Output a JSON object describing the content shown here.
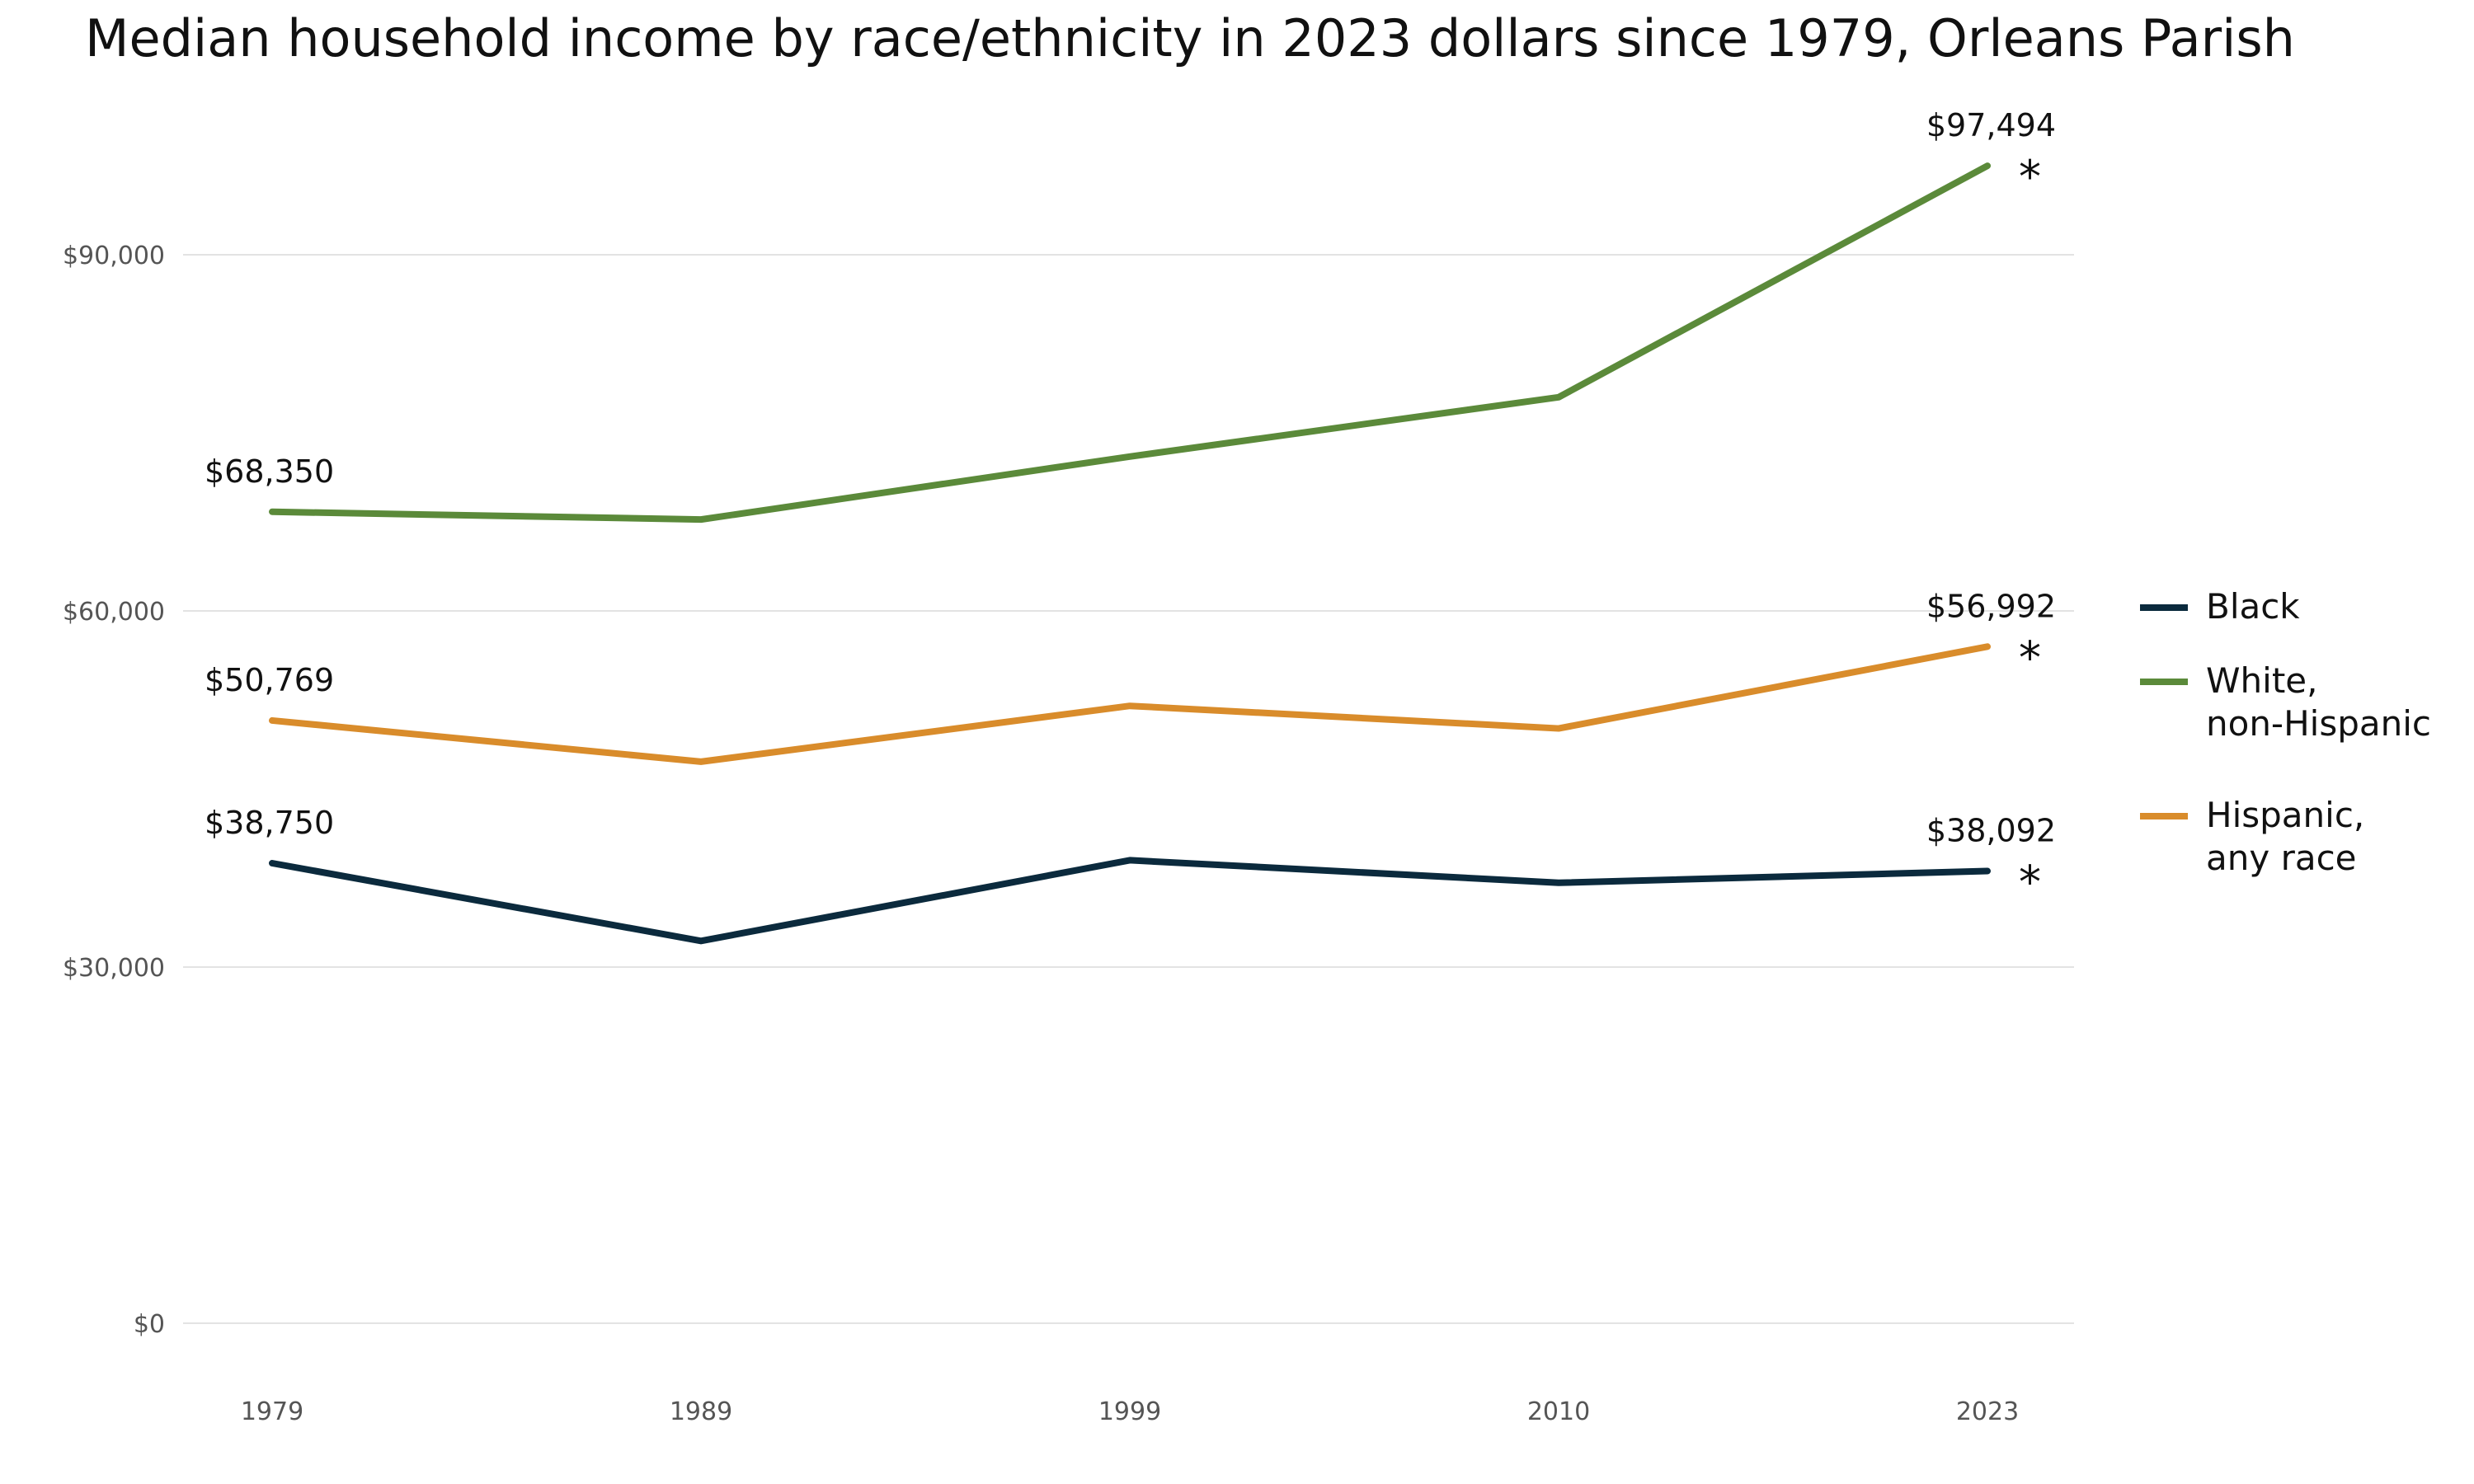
{
  "chart_data": {
    "type": "line",
    "title": "Median household income by race/ethnicity in 2023 dollars since 1979, Orleans Parish",
    "xlabel": "",
    "ylabel": "",
    "categories": [
      "1979",
      "1989",
      "1999",
      "2010",
      "2023"
    ],
    "ylim": [
      0,
      100000
    ],
    "y_ticks": [
      0,
      30000,
      60000,
      90000
    ],
    "y_tick_labels": [
      "$0",
      "$30,000",
      "$60,000",
      "$90,000"
    ],
    "grid": true,
    "legend_position": "right",
    "series": [
      {
        "name": "Black",
        "legend_lines": [
          "Black"
        ],
        "color": "#0b2a3d",
        "values": [
          38750,
          32200,
          39000,
          37100,
          38092
        ],
        "start_label": "$38,750",
        "end_label": "$38,092",
        "end_marker": "*"
      },
      {
        "name": "White, non-Hispanic",
        "legend_lines": [
          "White,",
          "non-Hispanic"
        ],
        "color": "#5b8a3a",
        "values": [
          68350,
          67700,
          73000,
          78000,
          97494
        ],
        "start_label": "$68,350",
        "end_label": "$97,494",
        "end_marker": "*"
      },
      {
        "name": "Hispanic, any race",
        "legend_lines": [
          "Hispanic,",
          "any race"
        ],
        "color": "#d98c2b",
        "values": [
          50769,
          47300,
          52000,
          50100,
          56992
        ],
        "start_label": "$50,769",
        "end_label": "$56,992",
        "end_marker": "*"
      }
    ]
  }
}
